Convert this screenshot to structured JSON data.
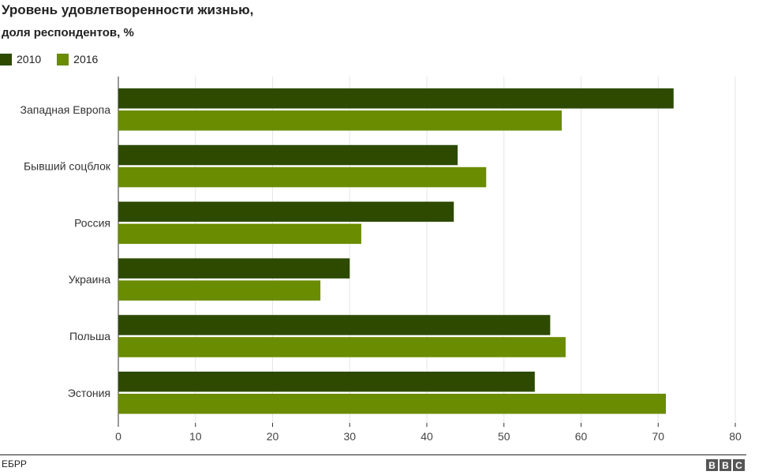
{
  "title": "Уровень удовлетворенности жизнью,",
  "subtitle": "доля респондентов, %",
  "source": "ЕБРР",
  "logo": {
    "letters": [
      "B",
      "B",
      "C"
    ]
  },
  "colors": {
    "series_2010": "#2d4a00",
    "series_2016": "#6a8c00",
    "grid": "#e5e5e5",
    "axis": "#333333"
  },
  "chart_data": {
    "type": "bar",
    "orientation": "horizontal",
    "categories": [
      "Западная Европа",
      "Бывший соцблок",
      "Россия",
      "Украина",
      "Польша",
      "Эстония"
    ],
    "series": [
      {
        "name": "2010",
        "values": [
          72,
          44,
          43.5,
          30,
          56,
          54
        ]
      },
      {
        "name": "2016",
        "values": [
          57.5,
          47.7,
          31.5,
          26.2,
          58,
          71
        ]
      }
    ],
    "xlim": [
      0,
      80
    ],
    "xticks": [
      "0",
      "10",
      "20",
      "30",
      "40",
      "50",
      "60",
      "70",
      "80"
    ],
    "grid": true,
    "legend_position": "top-left"
  }
}
